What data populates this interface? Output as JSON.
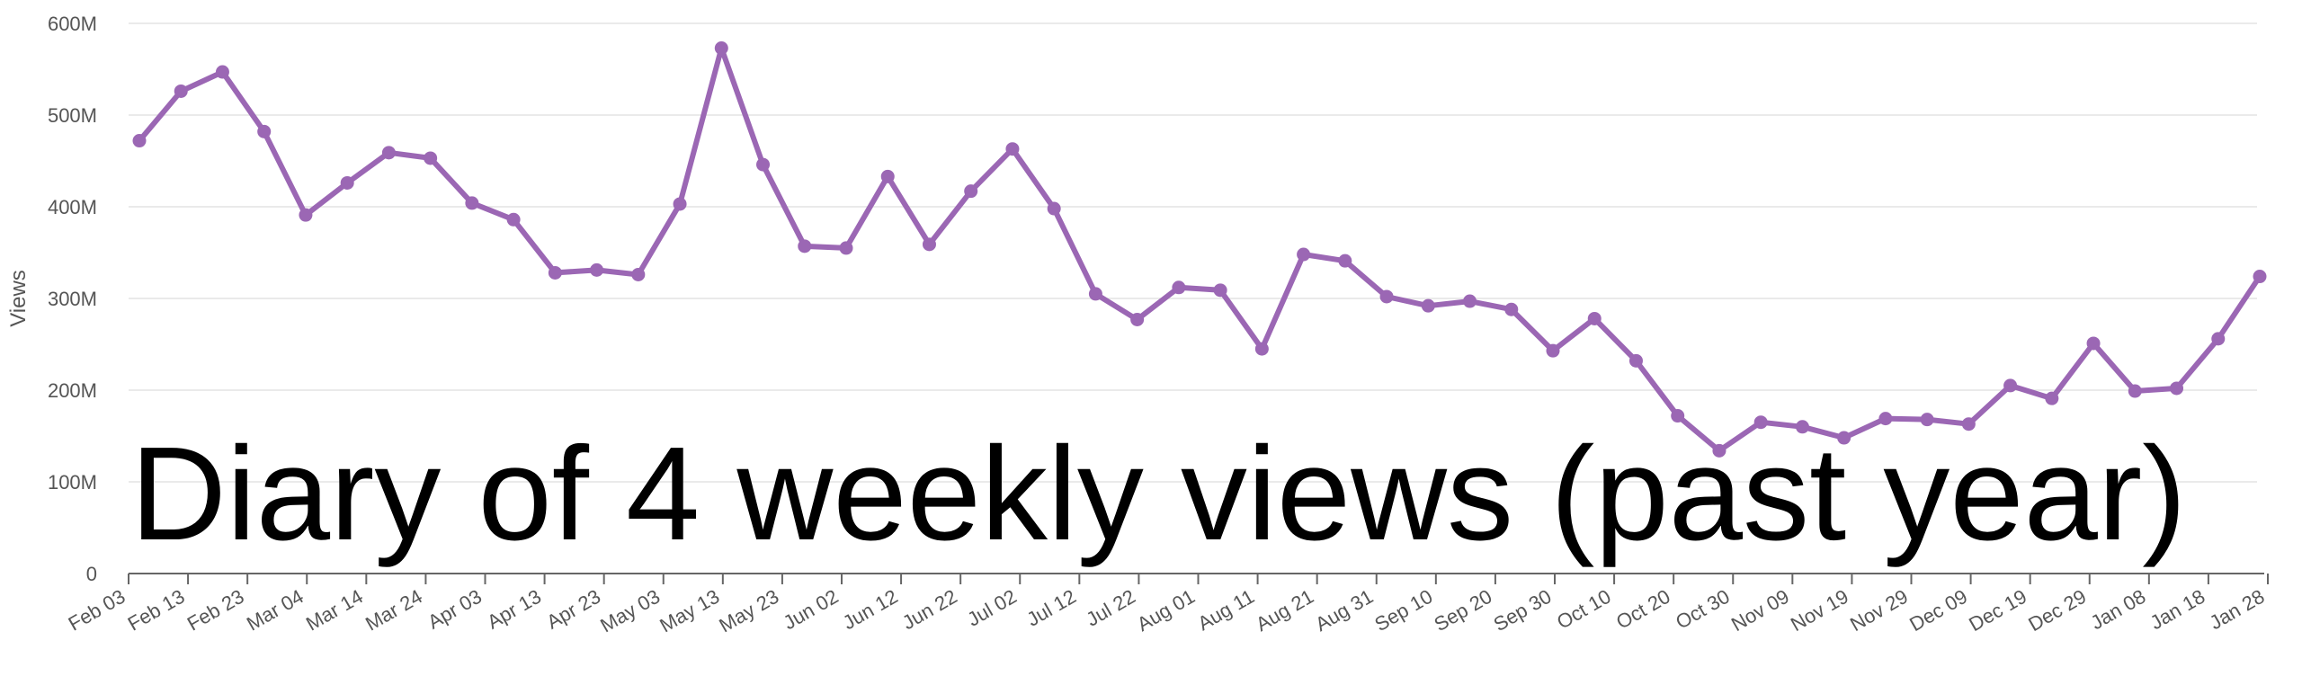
{
  "chart_data": {
    "type": "line",
    "title": "Diary of 4 weekly views (past year)",
    "ylabel": "Views",
    "xlabel": "",
    "ylim": [
      0,
      600000000
    ],
    "y_ticks": [
      0,
      100000000,
      200000000,
      300000000,
      400000000,
      500000000,
      600000000
    ],
    "y_tick_labels": [
      "0",
      "100M",
      "200M",
      "300M",
      "400M",
      "500M",
      "600M"
    ],
    "x_tick_labels": [
      "Feb 03",
      "Feb 13",
      "Feb 23",
      "Mar 04",
      "Mar 14",
      "Mar 24",
      "Apr 03",
      "Apr 13",
      "Apr 23",
      "May 03",
      "May 13",
      "May 23",
      "Jun 02",
      "Jun 12",
      "Jun 22",
      "Jul 02",
      "Jul 12",
      "Jul 22",
      "Aug 01",
      "Aug 11",
      "Aug 21",
      "Aug 31",
      "Sep 10",
      "Sep 20",
      "Sep 30",
      "Oct 10",
      "Oct 20",
      "Oct 30",
      "Nov 09",
      "Nov 19",
      "Nov 29",
      "Dec 09",
      "Dec 19",
      "Dec 29",
      "Jan 08",
      "Jan 18",
      "Jan 28"
    ],
    "grid": true,
    "color": "#9b67b4",
    "series": [
      {
        "values": [
          472000000,
          526000000,
          547000000,
          482000000,
          391000000,
          426000000,
          459000000,
          453000000,
          404000000,
          386000000,
          328000000,
          331000000,
          326000000,
          403000000,
          573000000,
          446000000,
          357000000,
          355000000,
          433000000,
          359000000,
          417000000,
          463000000,
          398000000,
          305000000,
          277000000,
          312000000,
          309000000,
          245000000,
          348000000,
          341000000,
          302000000,
          292000000,
          297000000,
          288000000,
          243000000,
          278000000,
          232000000,
          172000000,
          134000000,
          165000000,
          160000000,
          148000000,
          169000000,
          168000000,
          163000000,
          205000000,
          191000000,
          251000000,
          199000000,
          202000000,
          256000000,
          324000000
        ]
      }
    ]
  }
}
